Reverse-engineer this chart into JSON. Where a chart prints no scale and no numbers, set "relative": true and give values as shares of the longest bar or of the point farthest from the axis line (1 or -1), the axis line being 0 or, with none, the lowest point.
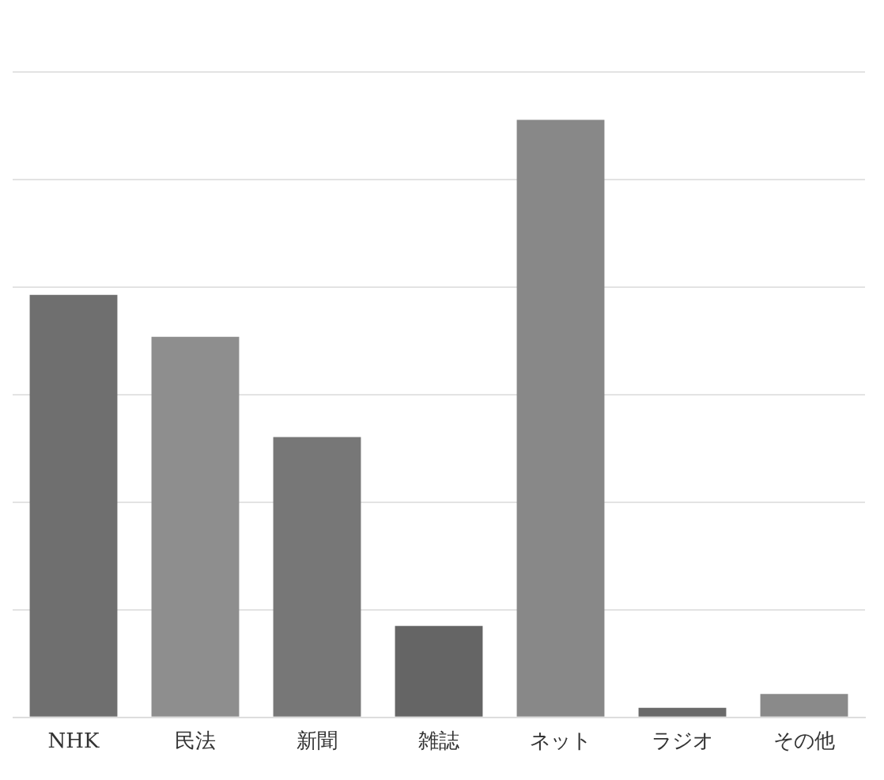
{
  "chart_data": {
    "type": "bar",
    "relative": true,
    "grid": "y",
    "categories": [
      "NHK",
      "民法",
      "新聞",
      "雑誌",
      "ネット",
      "ラジオ",
      "その他"
    ],
    "values": [
      0.707,
      0.637,
      0.469,
      0.153,
      1,
      0.016,
      0.039
    ],
    "colors": [
      "#6f6f6f",
      "#8e8e8e",
      "#777777",
      "#656565",
      "#888888",
      "#6a6a6a",
      "#8a8a8a"
    ]
  }
}
